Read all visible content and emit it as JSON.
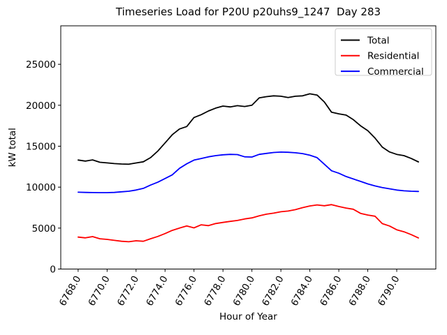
{
  "figure": {
    "background": "#ffffff"
  },
  "chart_data": {
    "type": "line",
    "title": "Timeseries Load for P20U p20uhs9_1247  Day 283",
    "xlabel": "Hour of Year",
    "ylabel": "kW total",
    "xlim": [
      6766.8,
      6792.7
    ],
    "ylim": [
      0,
      29700
    ],
    "grid": false,
    "legend_position": "upper right",
    "xticks": [
      6768,
      6770,
      6772,
      6774,
      6776,
      6778,
      6780,
      6782,
      6784,
      6786,
      6788,
      6790
    ],
    "xtick_labels": [
      "6768.0",
      "6770.0",
      "6772.0",
      "6774.0",
      "6776.0",
      "6778.0",
      "6780.0",
      "6782.0",
      "6784.0",
      "6786.0",
      "6788.0",
      "6790.0"
    ],
    "yticks": [
      0,
      5000,
      10000,
      15000,
      20000,
      25000
    ],
    "ytick_labels": [
      "0",
      "5000",
      "10000",
      "15000",
      "20000",
      "25000"
    ],
    "x": [
      6768.0,
      6768.5,
      6769.0,
      6769.5,
      6770.0,
      6770.5,
      6771.0,
      6771.5,
      6772.0,
      6772.5,
      6773.0,
      6773.5,
      6774.0,
      6774.5,
      6775.0,
      6775.5,
      6776.0,
      6776.5,
      6777.0,
      6777.5,
      6778.0,
      6778.5,
      6779.0,
      6779.5,
      6780.0,
      6780.5,
      6781.0,
      6781.5,
      6782.0,
      6782.5,
      6783.0,
      6783.5,
      6784.0,
      6784.5,
      6785.0,
      6785.5,
      6786.0,
      6786.5,
      6787.0,
      6787.5,
      6788.0,
      6788.5,
      6789.0,
      6789.5,
      6790.0,
      6790.5,
      6791.0,
      6791.5
    ],
    "series": [
      {
        "name": "Total",
        "color": "#000000",
        "values": [
          13310,
          13180,
          13330,
          13040,
          12960,
          12880,
          12830,
          12800,
          12950,
          13100,
          13600,
          14400,
          15400,
          16400,
          17100,
          17400,
          18500,
          18850,
          19300,
          19650,
          19900,
          19800,
          19950,
          19850,
          20000,
          20900,
          21050,
          21150,
          21100,
          20950,
          21100,
          21150,
          21400,
          21250,
          20400,
          19150,
          18950,
          18800,
          18250,
          17500,
          16900,
          16000,
          14900,
          14300,
          14000,
          13850,
          13500,
          13080
        ]
      },
      {
        "name": "Residential",
        "color": "#ff0000",
        "values": [
          3900,
          3810,
          3960,
          3700,
          3620,
          3500,
          3390,
          3330,
          3450,
          3390,
          3700,
          3980,
          4330,
          4720,
          5000,
          5260,
          5030,
          5400,
          5300,
          5560,
          5690,
          5820,
          5930,
          6120,
          6250,
          6500,
          6700,
          6830,
          7000,
          7080,
          7250,
          7500,
          7700,
          7830,
          7730,
          7870,
          7640,
          7450,
          7300,
          6800,
          6600,
          6450,
          5550,
          5260,
          4800,
          4550,
          4200,
          3800
        ]
      },
      {
        "name": "Commercial",
        "color": "#0000ff",
        "values": [
          9380,
          9360,
          9340,
          9330,
          9330,
          9360,
          9430,
          9500,
          9650,
          9850,
          10250,
          10600,
          11050,
          11500,
          12300,
          12850,
          13300,
          13500,
          13700,
          13850,
          13950,
          14000,
          13980,
          13700,
          13680,
          14000,
          14120,
          14230,
          14280,
          14260,
          14200,
          14100,
          13900,
          13600,
          12800,
          12000,
          11700,
          11300,
          11000,
          10700,
          10400,
          10150,
          9950,
          9800,
          9650,
          9550,
          9500,
          9480
        ]
      }
    ],
    "legend": [
      {
        "label": "Total",
        "color": "#000000"
      },
      {
        "label": "Residential",
        "color": "#ff0000"
      },
      {
        "label": "Commercial",
        "color": "#0000ff"
      }
    ]
  }
}
